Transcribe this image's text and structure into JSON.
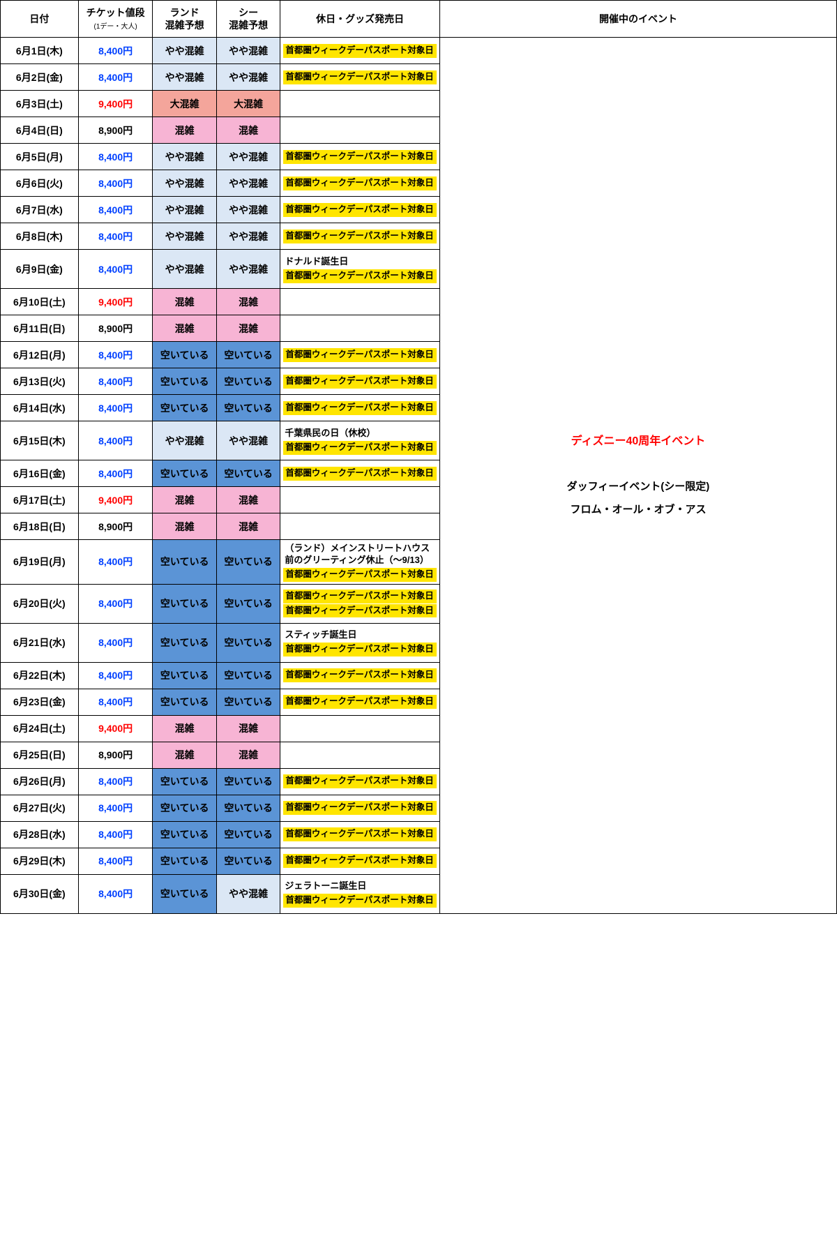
{
  "columns": {
    "date": "日付",
    "price": "チケット値段",
    "price_sub": "(1デー・大人)",
    "land": "ランド",
    "land_sub": "混雑予想",
    "sea": "シー",
    "sea_sub": "混雑予想",
    "holiday": "休日・グッズ発売日",
    "event": "開催中のイベント"
  },
  "colors": {
    "price_blue": "#0040ff",
    "price_red": "#ff0000",
    "price_black": "#000000",
    "bg_slight": "#dbe7f5",
    "bg_crowded": "#f7b4d4",
    "bg_very": "#f4a59b",
    "bg_empty": "#5b94d6",
    "bg_white": "#ffffff",
    "badge_bg": "#ffe500"
  },
  "crowd_labels": {
    "slight": "やや混雑",
    "crowded": "混雑",
    "very": "大混雑",
    "empty": "空いている"
  },
  "event_merged": {
    "title": "ディズニー40周年イベント",
    "line1": "ダッフィーイベント(シー限定)",
    "line2": "フロム・オール・オブ・アス"
  },
  "badge_text": "首都圏ウィークデーパスポート対象日",
  "rows": [
    {
      "date": "6月1日(木)",
      "price": "8,400円",
      "pc": "blue",
      "land": "slight",
      "sea": "slight",
      "notes": [],
      "badges": 1
    },
    {
      "date": "6月2日(金)",
      "price": "8,400円",
      "pc": "blue",
      "land": "slight",
      "sea": "slight",
      "notes": [],
      "badges": 1
    },
    {
      "date": "6月3日(土)",
      "price": "9,400円",
      "pc": "red",
      "land": "very",
      "sea": "very",
      "notes": [],
      "badges": 0
    },
    {
      "date": "6月4日(日)",
      "price": "8,900円",
      "pc": "black",
      "land": "crowded",
      "sea": "crowded",
      "notes": [],
      "badges": 0
    },
    {
      "date": "6月5日(月)",
      "price": "8,400円",
      "pc": "blue",
      "land": "slight",
      "sea": "slight",
      "notes": [],
      "badges": 1
    },
    {
      "date": "6月6日(火)",
      "price": "8,400円",
      "pc": "blue",
      "land": "slight",
      "sea": "slight",
      "notes": [],
      "badges": 1
    },
    {
      "date": "6月7日(水)",
      "price": "8,400円",
      "pc": "blue",
      "land": "slight",
      "sea": "slight",
      "notes": [],
      "badges": 1
    },
    {
      "date": "6月8日(木)",
      "price": "8,400円",
      "pc": "blue",
      "land": "slight",
      "sea": "slight",
      "notes": [],
      "badges": 1
    },
    {
      "date": "6月9日(金)",
      "price": "8,400円",
      "pc": "blue",
      "land": "slight",
      "sea": "slight",
      "notes": [
        "ドナルド誕生日"
      ],
      "badges": 1
    },
    {
      "date": "6月10日(土)",
      "price": "9,400円",
      "pc": "red",
      "land": "crowded",
      "sea": "crowded",
      "notes": [],
      "badges": 0
    },
    {
      "date": "6月11日(日)",
      "price": "8,900円",
      "pc": "black",
      "land": "crowded",
      "sea": "crowded",
      "notes": [],
      "badges": 0
    },
    {
      "date": "6月12日(月)",
      "price": "8,400円",
      "pc": "blue",
      "land": "empty",
      "sea": "empty",
      "notes": [],
      "badges": 1
    },
    {
      "date": "6月13日(火)",
      "price": "8,400円",
      "pc": "blue",
      "land": "empty",
      "sea": "empty",
      "notes": [],
      "badges": 1
    },
    {
      "date": "6月14日(水)",
      "price": "8,400円",
      "pc": "blue",
      "land": "empty",
      "sea": "empty",
      "notes": [],
      "badges": 1
    },
    {
      "date": "6月15日(木)",
      "price": "8,400円",
      "pc": "blue",
      "land": "slight",
      "sea": "slight",
      "notes": [
        "千葉県民の日（休校）"
      ],
      "badges": 1
    },
    {
      "date": "6月16日(金)",
      "price": "8,400円",
      "pc": "blue",
      "land": "empty",
      "sea": "empty",
      "notes": [],
      "badges": 1
    },
    {
      "date": "6月17日(土)",
      "price": "9,400円",
      "pc": "red",
      "land": "crowded",
      "sea": "crowded",
      "notes": [],
      "badges": 0
    },
    {
      "date": "6月18日(日)",
      "price": "8,900円",
      "pc": "black",
      "land": "crowded",
      "sea": "crowded",
      "notes": [],
      "badges": 0
    },
    {
      "date": "6月19日(月)",
      "price": "8,400円",
      "pc": "blue",
      "land": "empty",
      "sea": "empty",
      "notes": [
        "（ランド）メインストリートハウス前のグリーティング休止（～9/13）"
      ],
      "badges": 1
    },
    {
      "date": "6月20日(火)",
      "price": "8,400円",
      "pc": "blue",
      "land": "empty",
      "sea": "empty",
      "notes": [],
      "badges": 2
    },
    {
      "date": "6月21日(水)",
      "price": "8,400円",
      "pc": "blue",
      "land": "empty",
      "sea": "empty",
      "notes": [
        "スティッチ誕生日"
      ],
      "badges": 1
    },
    {
      "date": "6月22日(木)",
      "price": "8,400円",
      "pc": "blue",
      "land": "empty",
      "sea": "empty",
      "notes": [],
      "badges": 1
    },
    {
      "date": "6月23日(金)",
      "price": "8,400円",
      "pc": "blue",
      "land": "empty",
      "sea": "empty",
      "notes": [],
      "badges": 1
    },
    {
      "date": "6月24日(土)",
      "price": "9,400円",
      "pc": "red",
      "land": "crowded",
      "sea": "crowded",
      "notes": [],
      "badges": 0
    },
    {
      "date": "6月25日(日)",
      "price": "8,900円",
      "pc": "black",
      "land": "crowded",
      "sea": "crowded",
      "notes": [],
      "badges": 0
    },
    {
      "date": "6月26日(月)",
      "price": "8,400円",
      "pc": "blue",
      "land": "empty",
      "sea": "empty",
      "notes": [],
      "badges": 1
    },
    {
      "date": "6月27日(火)",
      "price": "8,400円",
      "pc": "blue",
      "land": "empty",
      "sea": "empty",
      "notes": [],
      "badges": 1
    },
    {
      "date": "6月28日(水)",
      "price": "8,400円",
      "pc": "blue",
      "land": "empty",
      "sea": "empty",
      "notes": [],
      "badges": 1
    },
    {
      "date": "6月29日(木)",
      "price": "8,400円",
      "pc": "blue",
      "land": "empty",
      "sea": "empty",
      "notes": [],
      "badges": 1
    },
    {
      "date": "6月30日(金)",
      "price": "8,400円",
      "pc": "blue",
      "land": "empty",
      "sea": "slight",
      "notes": [
        "ジェラトーニ誕生日"
      ],
      "badges": 1
    }
  ]
}
